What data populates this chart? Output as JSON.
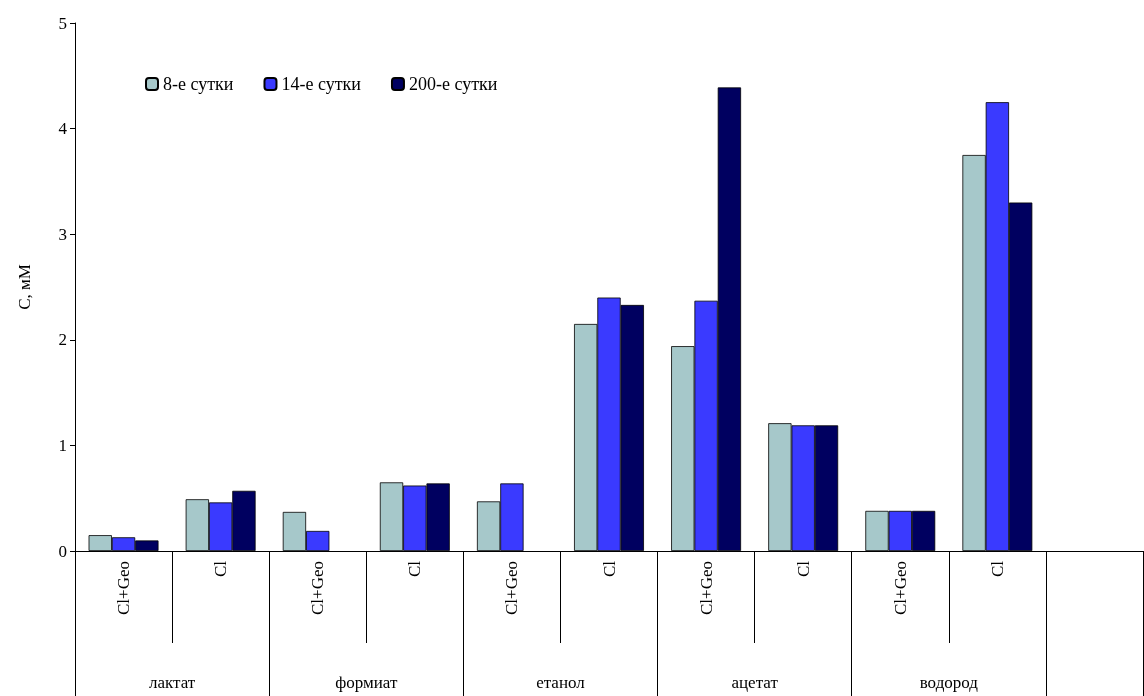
{
  "chart_data": {
    "type": "bar",
    "ylabel": "C, мМ",
    "categories": [
      "Cl+Geo",
      "Cl",
      "Cl+Geo",
      "Cl",
      "Cl+Geo",
      "Cl",
      "Cl+Geo",
      "Cl",
      "Cl+Geo",
      "Cl",
      null
    ],
    "annotations": [
      "лактат",
      "формиат",
      "етанол",
      "ацетат",
      "водород"
    ],
    "series": [
      {
        "name": "8-е сутки",
        "color": "#a6c8ca",
        "values": [
          0.15,
          0.49,
          0.37,
          0.65,
          0.47,
          2.15,
          1.94,
          1.21,
          0.38,
          3.75,
          null
        ]
      },
      {
        "name": "14-е сутки",
        "color": "#3a3aff",
        "values": [
          0.13,
          0.46,
          0.19,
          0.62,
          0.64,
          2.4,
          2.37,
          1.19,
          0.38,
          4.25,
          null
        ]
      },
      {
        "name": "200-е сутки",
        "color": "#000060",
        "values": [
          0.1,
          0.57,
          null,
          0.64,
          null,
          2.33,
          4.39,
          1.19,
          0.38,
          3.3,
          null
        ]
      }
    ],
    "ylim": [
      0,
      5
    ],
    "yticks": [
      0,
      1,
      2,
      3,
      4,
      5
    ],
    "grid": false,
    "legend": "top left"
  }
}
